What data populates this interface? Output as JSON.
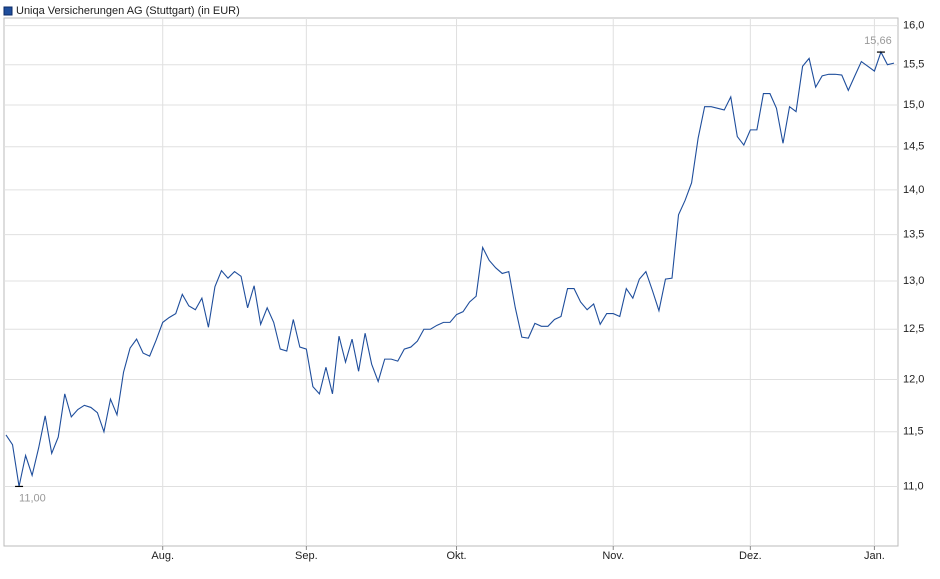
{
  "chart_data": {
    "type": "line",
    "ylog": true,
    "grid": true,
    "legend": "top-left",
    "categories": [
      null,
      null,
      null,
      null,
      null,
      null,
      null,
      null,
      null,
      null,
      null,
      null,
      null,
      null,
      null,
      null,
      null,
      null,
      null,
      null,
      null,
      null,
      null,
      null,
      "Aug.",
      null,
      null,
      null,
      null,
      null,
      null,
      null,
      null,
      null,
      null,
      null,
      null,
      null,
      null,
      null,
      null,
      null,
      null,
      null,
      null,
      null,
      "Sep.",
      null,
      null,
      null,
      null,
      null,
      null,
      null,
      null,
      null,
      null,
      null,
      null,
      null,
      null,
      null,
      null,
      null,
      null,
      null,
      null,
      null,
      null,
      "Okt.",
      null,
      null,
      null,
      null,
      null,
      null,
      null,
      null,
      null,
      null,
      null,
      null,
      null,
      null,
      null,
      null,
      null,
      null,
      null,
      null,
      null,
      null,
      null,
      "Nov.",
      null,
      null,
      null,
      null,
      null,
      null,
      null,
      null,
      null,
      null,
      null,
      null,
      null,
      null,
      null,
      null,
      null,
      null,
      null,
      null,
      "Dez.",
      null,
      null,
      null,
      null,
      null,
      null,
      null,
      null,
      null,
      null,
      null,
      null,
      null,
      null,
      null,
      null,
      null,
      null,
      "Jan.",
      null,
      null,
      null
    ],
    "series": [
      {
        "name": "Uniqa Versicherungen AG (Stuttgart) (in EUR)",
        "color": "#1f4e9c",
        "values": [
          11.47,
          11.38,
          11.0,
          11.28,
          11.1,
          11.35,
          11.65,
          11.3,
          11.45,
          11.86,
          11.64,
          11.71,
          11.75,
          11.73,
          11.68,
          11.5,
          11.81,
          11.66,
          12.07,
          12.31,
          12.4,
          12.26,
          12.23,
          12.39,
          12.57,
          12.62,
          12.66,
          12.86,
          12.74,
          12.7,
          12.82,
          12.52,
          12.94,
          13.11,
          13.03,
          13.1,
          13.05,
          12.72,
          12.95,
          12.55,
          12.72,
          12.57,
          12.3,
          12.28,
          12.6,
          12.32,
          12.3,
          11.93,
          11.86,
          12.12,
          11.86,
          12.43,
          12.17,
          12.4,
          12.08,
          12.46,
          12.15,
          11.98,
          12.2,
          12.2,
          12.18,
          12.3,
          12.32,
          12.38,
          12.5,
          12.5,
          12.54,
          12.57,
          12.57,
          12.65,
          12.68,
          12.78,
          12.84,
          13.36,
          13.22,
          13.14,
          13.08,
          13.1,
          12.72,
          12.42,
          12.41,
          12.56,
          12.53,
          12.53,
          12.6,
          12.63,
          12.92,
          12.92,
          12.78,
          12.7,
          12.76,
          12.55,
          12.66,
          12.66,
          12.63,
          12.92,
          12.82,
          13.02,
          13.1,
          12.9,
          12.69,
          13.02,
          13.03,
          13.72,
          13.88,
          14.08,
          14.6,
          14.98,
          14.98,
          14.96,
          14.94,
          15.1,
          14.62,
          14.52,
          14.7,
          14.7,
          15.14,
          15.14,
          14.96,
          14.54,
          14.98,
          14.92,
          15.48,
          15.58,
          15.22,
          15.36,
          15.38,
          15.38,
          15.37,
          15.18,
          15.36,
          15.54,
          15.48,
          15.42,
          15.66,
          15.5,
          15.52
        ],
        "value_labels": [
          null,
          null,
          "11,00",
          null,
          null,
          null,
          null,
          null,
          null,
          null,
          null,
          null,
          null,
          null,
          null,
          null,
          null,
          null,
          null,
          null,
          null,
          null,
          null,
          null,
          null,
          null,
          null,
          null,
          null,
          null,
          null,
          null,
          null,
          null,
          null,
          null,
          null,
          null,
          null,
          null,
          null,
          null,
          null,
          null,
          null,
          null,
          null,
          null,
          null,
          null,
          null,
          null,
          null,
          null,
          null,
          null,
          null,
          null,
          null,
          null,
          null,
          null,
          null,
          null,
          null,
          null,
          null,
          null,
          null,
          null,
          null,
          null,
          null,
          null,
          null,
          null,
          null,
          null,
          null,
          null,
          null,
          null,
          null,
          null,
          null,
          null,
          null,
          null,
          null,
          null,
          null,
          null,
          null,
          null,
          null,
          null,
          null,
          null,
          null,
          null,
          null,
          null,
          null,
          null,
          null,
          null,
          null,
          null,
          null,
          null,
          null,
          null,
          null,
          null,
          null,
          null,
          null,
          null,
          null,
          null,
          null,
          null,
          null,
          null,
          null,
          null,
          null,
          null,
          null,
          null,
          null,
          null,
          null,
          null,
          "15,66",
          null,
          null
        ]
      }
    ],
    "ylim": [
      10.48,
      16.1
    ],
    "yticks": [
      {
        "value": 11,
        "label": "11,0"
      },
      {
        "value": 11.5,
        "label": "11,5"
      },
      {
        "value": 12,
        "label": "12,0"
      },
      {
        "value": 12.5,
        "label": "12,5"
      },
      {
        "value": 13,
        "label": "13,0"
      },
      {
        "value": 13.5,
        "label": "13,5"
      },
      {
        "value": 14,
        "label": "14,0"
      },
      {
        "value": 14.5,
        "label": "14,5"
      },
      {
        "value": 15,
        "label": "15,0"
      },
      {
        "value": 15.5,
        "label": "15,5"
      },
      {
        "value": 16,
        "label": "16,0"
      }
    ]
  }
}
